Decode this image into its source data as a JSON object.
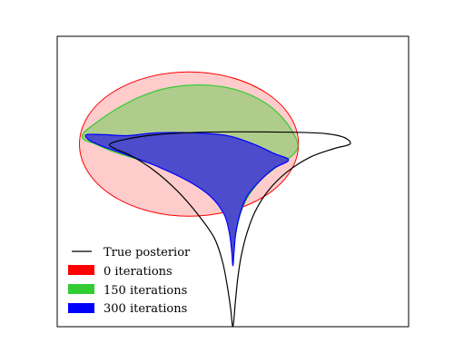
{
  "chart_data": {
    "type": "area",
    "title": "",
    "xlabel": "",
    "ylabel": "",
    "xlim": [
      -3.0,
      3.0
    ],
    "ylim": [
      -1.95,
      1.15
    ],
    "grid": false,
    "axis_ticks": false,
    "legend_position": "lower-left",
    "series": [
      {
        "name": "True posterior",
        "kind": "line",
        "color": "#000000",
        "points": [
          [
            0.0,
            -1.95
          ],
          [
            0.04,
            -1.7
          ],
          [
            0.08,
            -1.45
          ],
          [
            0.14,
            -1.2
          ],
          [
            0.24,
            -0.95
          ],
          [
            0.38,
            -0.72
          ],
          [
            0.6,
            -0.5
          ],
          [
            0.92,
            -0.3
          ],
          [
            1.32,
            -0.14
          ],
          [
            1.72,
            -0.05
          ],
          [
            2.0,
            0.0
          ],
          [
            1.9,
            0.07
          ],
          [
            1.6,
            0.11
          ],
          [
            1.1,
            0.125
          ],
          [
            0.2,
            0.13
          ],
          [
            -0.6,
            0.125
          ],
          [
            -1.3,
            0.1
          ],
          [
            -1.8,
            0.055
          ],
          [
            -2.1,
            0.0
          ],
          [
            -2.0,
            -0.055
          ],
          [
            -1.75,
            -0.12
          ],
          [
            -1.35,
            -0.28
          ],
          [
            -0.95,
            -0.5
          ],
          [
            -0.6,
            -0.75
          ],
          [
            -0.32,
            -1.0
          ],
          [
            -0.18,
            -1.25
          ],
          [
            -0.1,
            -1.5
          ],
          [
            -0.04,
            -1.75
          ],
          [
            0.0,
            -1.95
          ]
        ]
      },
      {
        "name": "0 iterations",
        "kind": "filled_ellipse",
        "fill": "#ffcccc",
        "stroke": "#ff0000",
        "center": [
          -0.75,
          0.0
        ],
        "radii": [
          1.87,
          0.77
        ]
      },
      {
        "name": "150 iterations",
        "kind": "filled_region",
        "fill": "#b0cc8c",
        "stroke": "#33cc33",
        "points": [
          [
            -2.55,
            0.12
          ],
          [
            -2.35,
            0.22
          ],
          [
            -2.05,
            0.35
          ],
          [
            -1.6,
            0.5
          ],
          [
            -1.1,
            0.6
          ],
          [
            -0.5,
            0.63
          ],
          [
            0.05,
            0.58
          ],
          [
            0.55,
            0.44
          ],
          [
            0.9,
            0.24
          ],
          [
            1.1,
            0.02
          ],
          [
            1.05,
            -0.1
          ],
          [
            0.78,
            -0.23
          ],
          [
            0.5,
            -0.37
          ],
          [
            0.28,
            -0.54
          ],
          [
            0.14,
            -0.72
          ],
          [
            0.06,
            -0.92
          ],
          [
            0.02,
            -1.08
          ],
          [
            0.0,
            -1.14
          ],
          [
            -0.02,
            -1.02
          ],
          [
            -0.1,
            -0.82
          ],
          [
            -0.3,
            -0.58
          ],
          [
            -0.62,
            -0.4
          ],
          [
            -1.1,
            -0.27
          ],
          [
            -1.6,
            -0.17
          ],
          [
            -2.05,
            -0.08
          ],
          [
            -2.35,
            0.0
          ],
          [
            -2.55,
            0.05
          ]
        ]
      },
      {
        "name": "300 iterations",
        "kind": "filled_region",
        "fill": "#4c4ccc",
        "stroke": "#0000ff",
        "points": [
          [
            -2.5,
            0.1
          ],
          [
            -2.2,
            0.1
          ],
          [
            -1.8,
            0.09
          ],
          [
            -1.3,
            0.12
          ],
          [
            -0.7,
            0.12
          ],
          [
            -0.1,
            0.09
          ],
          [
            0.35,
            0.0
          ],
          [
            0.7,
            -0.1
          ],
          [
            0.95,
            -0.17
          ],
          [
            0.7,
            -0.26
          ],
          [
            0.45,
            -0.4
          ],
          [
            0.24,
            -0.56
          ],
          [
            0.12,
            -0.75
          ],
          [
            0.05,
            -0.95
          ],
          [
            0.02,
            -1.15
          ],
          [
            0.0,
            -1.3
          ],
          [
            -0.02,
            -1.15
          ],
          [
            -0.06,
            -0.95
          ],
          [
            -0.15,
            -0.75
          ],
          [
            -0.38,
            -0.56
          ],
          [
            -0.75,
            -0.4
          ],
          [
            -1.25,
            -0.25
          ],
          [
            -1.75,
            -0.13
          ],
          [
            -2.2,
            -0.03
          ],
          [
            -2.45,
            0.04
          ]
        ]
      }
    ]
  }
}
